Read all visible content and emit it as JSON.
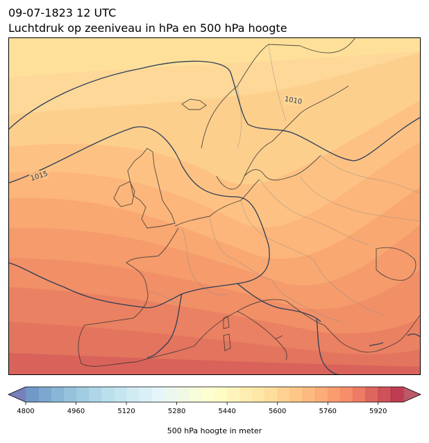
{
  "header": {
    "datetime": "09-07-1823 12 UTC",
    "title": "Luchtdruk op zeeniveau in hPa en 500 hPa hoogte"
  },
  "map": {
    "isobars": [
      {
        "label": "1010"
      },
      {
        "label": "1015"
      }
    ],
    "isobar_color": "#2c3e57",
    "coast_color": "#333333",
    "border_color": "#8a8a8a"
  },
  "colorbar": {
    "label": "500 hPa hoogte in meter",
    "min": 4800,
    "max": 6000,
    "step": 40,
    "tick_values": [
      4800,
      4960,
      5120,
      5280,
      5440,
      5600,
      5760,
      5920
    ],
    "tick_labels": [
      "4800",
      "4960",
      "5120",
      "5280",
      "5440",
      "5600",
      "5760",
      "5920"
    ],
    "colormap": "RdYlBu_r",
    "extend": "both"
  }
}
